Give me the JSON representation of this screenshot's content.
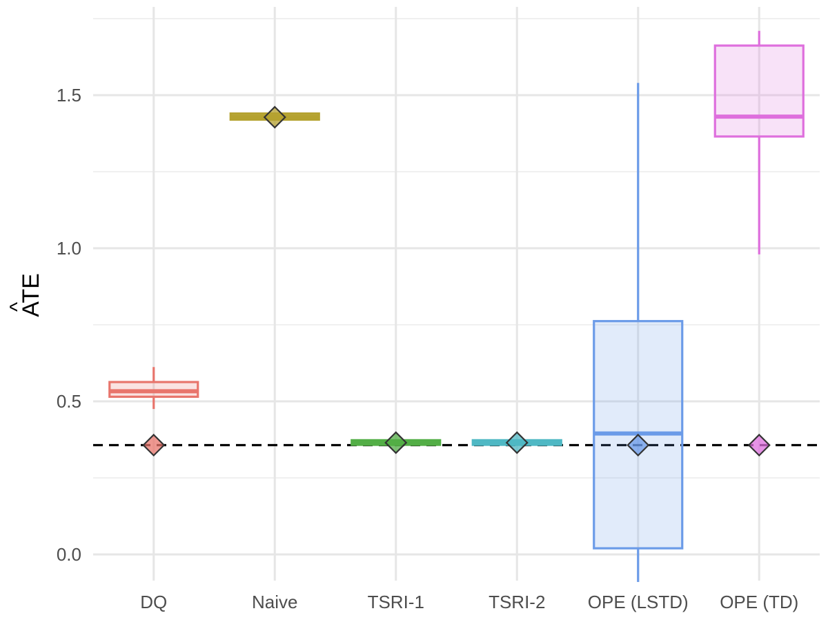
{
  "chart_data": {
    "type": "box",
    "title": "",
    "xlabel": "",
    "ylabel": "ATE",
    "ylabel_hat_mark": "^",
    "ylim": [
      -0.07,
      1.77
    ],
    "y_ticks": [
      0.0,
      0.5,
      1.0,
      1.5
    ],
    "y_tick_labels": [
      "0.0",
      "0.5",
      "1.0",
      "1.5"
    ],
    "y_minor_ticks": [
      0.25,
      0.75,
      1.25,
      1.75
    ],
    "grid": true,
    "legend": "none",
    "reference_line": {
      "value": 0.357,
      "style": "dashed",
      "color": "#000000"
    },
    "categories": [
      "DQ",
      "Naive",
      "TSRI-1",
      "TSRI-2",
      "OPE (LSTD)",
      "OPE (TD)"
    ],
    "series": [
      {
        "category": "DQ",
        "color": "#E8756C",
        "whisker_low": 0.475,
        "q1": 0.515,
        "median": 0.533,
        "q3": 0.563,
        "whisker_high": 0.612,
        "mean": 0.357
      },
      {
        "category": "Naive",
        "color": "#B5A230",
        "whisker_low": 1.42,
        "q1": 1.42,
        "median": 1.428,
        "q3": 1.44,
        "whisker_high": 1.44,
        "mean": 1.428
      },
      {
        "category": "TSRI-1",
        "color": "#53AE46",
        "whisker_low": 0.358,
        "q1": 0.358,
        "median": 0.365,
        "q3": 0.373,
        "whisker_high": 0.373,
        "mean": 0.365
      },
      {
        "category": "TSRI-2",
        "color": "#4FB8C4",
        "whisker_low": 0.358,
        "q1": 0.358,
        "median": 0.365,
        "q3": 0.373,
        "whisker_high": 0.373,
        "mean": 0.365
      },
      {
        "category": "OPE (LSTD)",
        "color": "#6B9BE8",
        "whisker_low": -0.09,
        "q1": 0.02,
        "median": 0.395,
        "q3": 0.762,
        "whisker_high": 1.54,
        "mean": 0.357
      },
      {
        "category": "OPE (TD)",
        "color": "#DE6FDD",
        "whisker_low": 0.98,
        "q1": 1.365,
        "median": 1.43,
        "q3": 1.662,
        "whisker_high": 1.71,
        "mean": 0.357
      }
    ]
  }
}
